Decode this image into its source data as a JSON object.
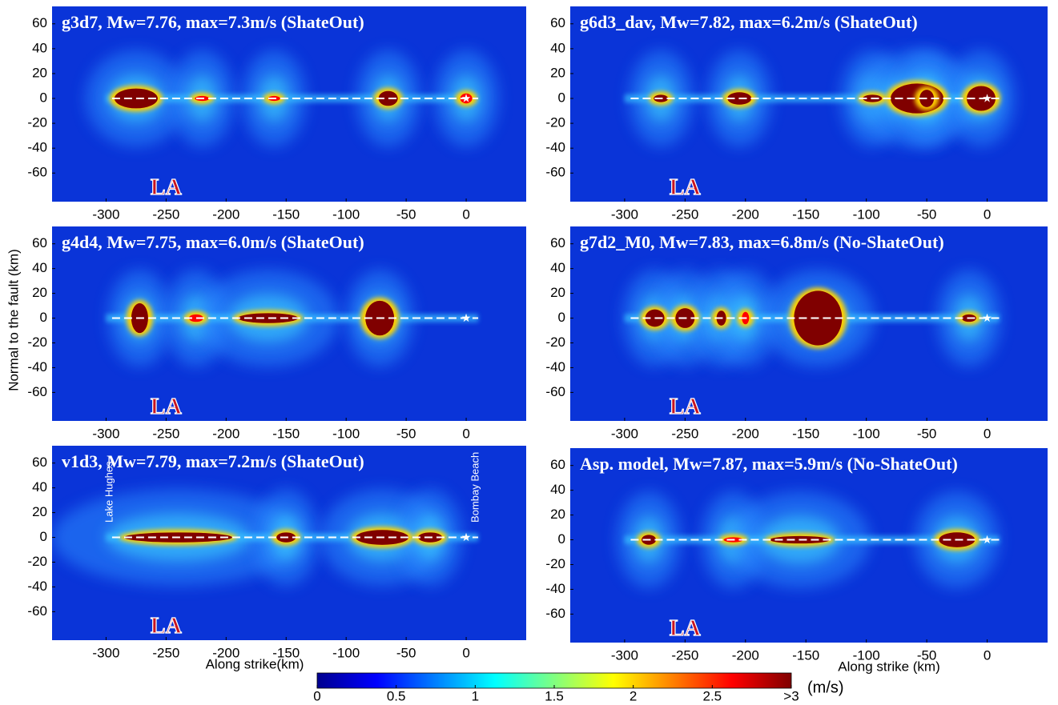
{
  "chart_data": [
    {
      "type": "heatmap",
      "title": "g3d7,  Mw=7.76, max=7.3m/s (ShateOut)",
      "xlim": [
        -345,
        50
      ],
      "ylim": [
        -83,
        74
      ],
      "xticks": [
        -300,
        -250,
        -200,
        -150,
        -100,
        -50,
        0
      ],
      "yticks": [
        60,
        40,
        20,
        0,
        -20,
        -40,
        -60
      ],
      "annotations": [
        "LA"
      ]
    },
    {
      "type": "heatmap",
      "title": "g6d3_dav,  Mw=7.82, max=6.2m/s (ShateOut)",
      "xlim": [
        -345,
        50
      ],
      "ylim": [
        -83,
        74
      ],
      "xticks": [
        -300,
        -250,
        -200,
        -150,
        -100,
        -50,
        0
      ],
      "yticks": [
        60,
        40,
        20,
        0,
        -20,
        -40,
        -60
      ],
      "annotations": [
        "LA"
      ]
    },
    {
      "type": "heatmap",
      "title": "g4d4,  Mw=7.75, max=6.0m/s (ShateOut)",
      "xlim": [
        -345,
        50
      ],
      "ylim": [
        -83,
        74
      ],
      "xticks": [
        -300,
        -250,
        -200,
        -150,
        -100,
        -50,
        0
      ],
      "yticks": [
        60,
        40,
        20,
        0,
        -20,
        -40,
        -60
      ],
      "annotations": [
        "LA"
      ],
      "ylabel": "Normal to the fault (km)"
    },
    {
      "type": "heatmap",
      "title": "g7d2_M0,  Mw=7.83, max=6.8m/s (No-ShateOut)",
      "xlim": [
        -345,
        50
      ],
      "ylim": [
        -83,
        74
      ],
      "xticks": [
        -300,
        -250,
        -200,
        -150,
        -100,
        -50,
        0
      ],
      "yticks": [
        60,
        40,
        20,
        0,
        -20,
        -40,
        -60
      ],
      "annotations": [
        "LA"
      ]
    },
    {
      "type": "heatmap",
      "title": "v1d3,  Mw=7.79, max=7.2m/s (ShateOut)",
      "xlim": [
        -345,
        50
      ],
      "ylim": [
        -83,
        74
      ],
      "xticks": [
        -300,
        -250,
        -200,
        -150,
        -100,
        -50,
        0
      ],
      "yticks": [
        60,
        40,
        20,
        0,
        -20,
        -40,
        -60
      ],
      "annotations": [
        "LA",
        "Lake Hughes",
        "Bombay Beach"
      ],
      "xlabel": "Along strike(km)"
    },
    {
      "type": "heatmap",
      "title": "Asp. model,  Mw=7.87, max=5.9m/s (No-ShateOut)",
      "xlim": [
        -345,
        50
      ],
      "ylim": [
        -83,
        74
      ],
      "xticks": [
        -300,
        -250,
        -200,
        -150,
        -100,
        -50,
        0
      ],
      "yticks": [
        60,
        40,
        20,
        0,
        -20,
        -40,
        -60
      ],
      "annotations": [
        "LA"
      ],
      "xlabel": "Along strike (km)"
    }
  ],
  "colorbar": {
    "lim": [
      0,
      3
    ],
    "ticks": [
      0,
      0.5,
      1,
      1.5,
      2,
      2.5,
      {
        "value": 3,
        "label": ">3"
      }
    ],
    "unit": "(m/s)",
    "colors": [
      "#00008f",
      "#0000ff",
      "#0080ff",
      "#00ffff",
      "#80ff80",
      "#ffff00",
      "#ff8000",
      "#ff0000",
      "#800000"
    ]
  }
}
